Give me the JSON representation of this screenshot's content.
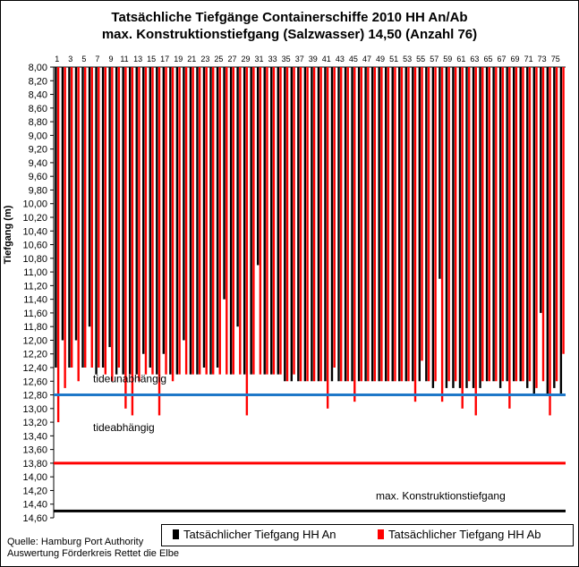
{
  "chart_data": {
    "type": "bar",
    "title_line1": "Tatsächliche Tiefgänge Containerschiffe 2010 HH An/Ab",
    "title_line2": "max. Konstruktionstiefgang (Salzwasser) 14,50 (Anzahl 76)",
    "ylabel": "Tiefgang (m)",
    "ylim": [
      8.0,
      14.6
    ],
    "y_inverted": true,
    "y_ticks": [
      "8,00",
      "8,20",
      "8,40",
      "8,60",
      "8,80",
      "9,00",
      "9,20",
      "9,40",
      "9,60",
      "9,80",
      "10,00",
      "10,20",
      "10,40",
      "10,60",
      "10,80",
      "11,00",
      "11,20",
      "11,40",
      "11,60",
      "11,80",
      "12,00",
      "12,20",
      "12,40",
      "12,60",
      "12,80",
      "13,00",
      "13,20",
      "13,40",
      "13,60",
      "13,80",
      "14,00",
      "14,20",
      "14,40",
      "14,60"
    ],
    "x_ticks": [
      "1",
      "3",
      "5",
      "7",
      "9",
      "11",
      "13",
      "15",
      "17",
      "19",
      "21",
      "23",
      "25",
      "27",
      "29",
      "31",
      "33",
      "35",
      "37",
      "39",
      "41",
      "43",
      "45",
      "47",
      "49",
      "51",
      "53",
      "55",
      "57",
      "59",
      "61",
      "63",
      "65",
      "67",
      "69",
      "71",
      "73",
      "75"
    ],
    "series": [
      {
        "name": "Tatsächlicher Tiefgang HH An",
        "color": "#000000",
        "values": [
          12.4,
          12.0,
          12.4,
          12.0,
          12.4,
          11.8,
          12.5,
          12.4,
          12.1,
          12.5,
          12.5,
          12.5,
          12.5,
          12.2,
          12.4,
          12.5,
          12.2,
          12.5,
          12.5,
          12.0,
          12.5,
          12.5,
          12.4,
          12.5,
          12.4,
          11.4,
          12.5,
          11.8,
          12.5,
          12.5,
          10.9,
          12.5,
          12.5,
          12.5,
          12.6,
          12.6,
          12.6,
          12.6,
          12.6,
          12.6,
          12.6,
          12.6,
          12.6,
          12.6,
          12.6,
          12.6,
          12.6,
          12.6,
          12.6,
          12.6,
          12.6,
          12.6,
          12.6,
          12.6,
          12.6,
          12.6,
          12.7,
          11.1,
          12.7,
          12.7,
          12.7,
          12.7,
          12.7,
          12.7,
          12.6,
          12.6,
          12.7,
          12.6,
          12.6,
          12.6,
          12.7,
          12.8,
          11.6,
          12.8,
          12.7,
          12.8
        ]
      },
      {
        "name": "Tatsächlicher Tiefgang HH Ab",
        "color": "#ff0000",
        "values": [
          13.2,
          12.7,
          12.4,
          12.6,
          12.4,
          12.4,
          12.4,
          12.5,
          12.6,
          12.4,
          13.0,
          13.1,
          12.6,
          12.5,
          12.5,
          13.1,
          12.5,
          12.6,
          12.5,
          12.5,
          12.5,
          12.5,
          12.5,
          12.5,
          12.5,
          12.5,
          12.5,
          12.5,
          13.1,
          12.5,
          12.5,
          12.5,
          12.5,
          12.5,
          12.6,
          12.5,
          12.6,
          12.6,
          12.6,
          12.6,
          13.0,
          12.4,
          12.6,
          12.6,
          12.9,
          12.6,
          12.6,
          12.6,
          12.6,
          12.6,
          12.6,
          12.6,
          12.6,
          12.9,
          12.3,
          12.6,
          12.6,
          12.9,
          12.6,
          12.6,
          13.0,
          12.6,
          13.1,
          12.6,
          12.6,
          12.6,
          12.6,
          13.0,
          12.6,
          12.6,
          12.6,
          12.7,
          12.6,
          13.1,
          12.6,
          12.2
        ]
      }
    ],
    "reference_lines": [
      {
        "value": 12.8,
        "color": "#1f78c8",
        "label": "tideunabhängig",
        "label_position": "above"
      },
      {
        "value": 13.8,
        "color": "#ff0000",
        "label": "tideabhängig",
        "label_position": "above-left"
      },
      {
        "value": 14.5,
        "color": "#000000",
        "label": "max. Konstruktionstiefgang",
        "label_position": "above-right"
      }
    ],
    "legend_position": "bottom-right",
    "grid": false
  },
  "footer": {
    "source_line1": "Quelle: Hamburg Port Authority",
    "source_line2": "Auswertung Förderkreis Rettet die Elbe"
  }
}
